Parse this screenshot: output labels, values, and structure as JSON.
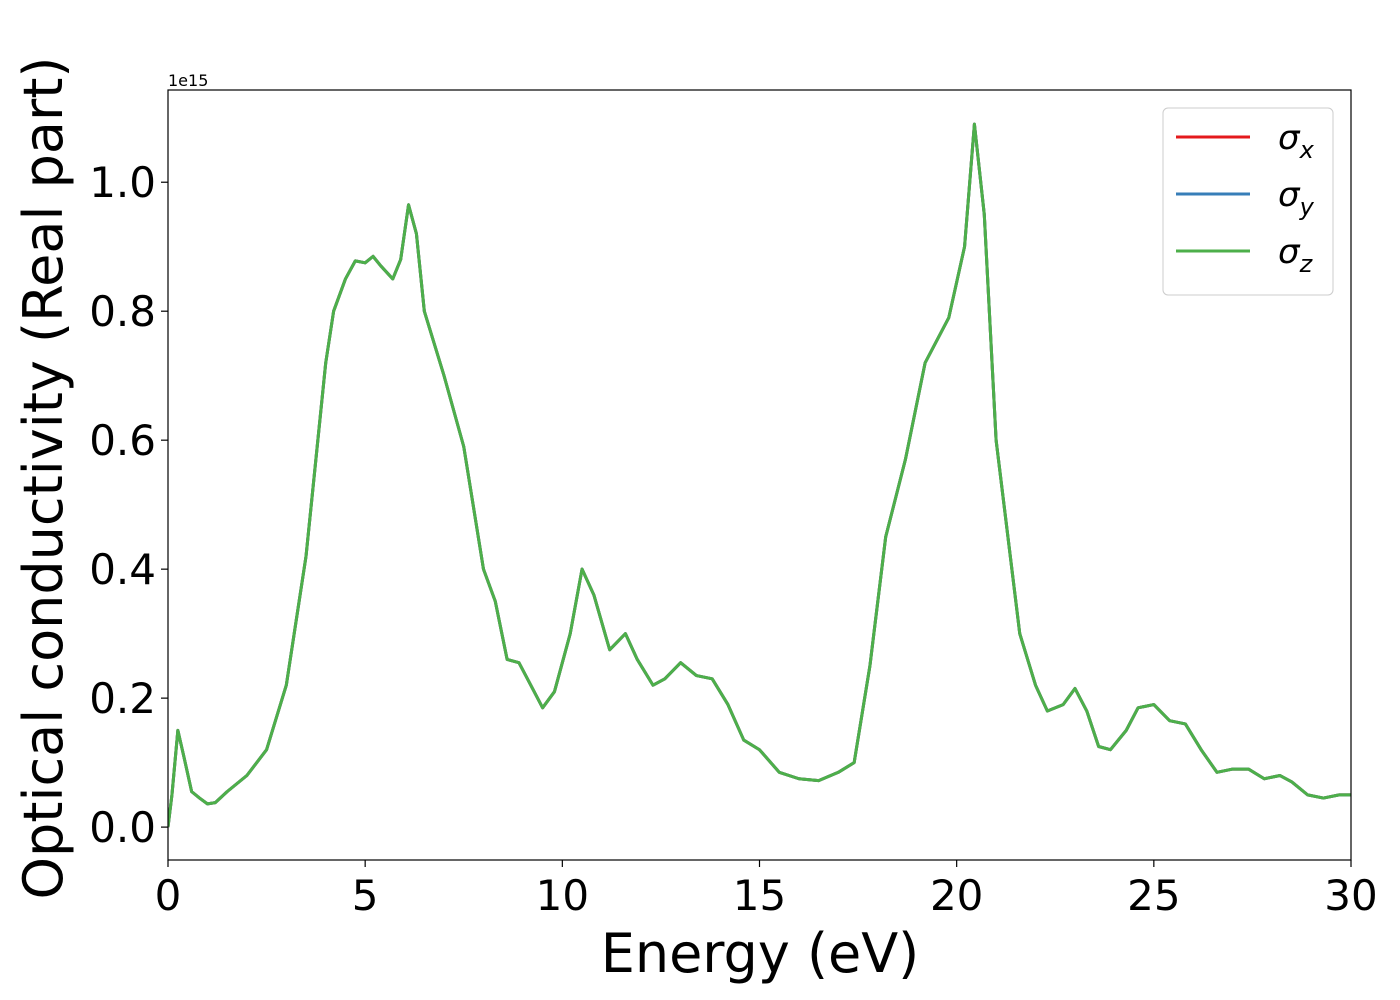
{
  "chart_data": {
    "type": "line",
    "xlabel": "Energy (eV)",
    "ylabel": "Optical conductivity (Real part)",
    "y_offset_label": "1e15",
    "x": [
      0,
      0.1,
      0.25,
      0.4,
      0.6,
      0.8,
      1.0,
      1.2,
      1.5,
      2.0,
      2.5,
      3.0,
      3.5,
      4.0,
      4.2,
      4.5,
      4.75,
      5.0,
      5.2,
      5.4,
      5.7,
      5.9,
      6.1,
      6.3,
      6.5,
      7.0,
      7.5,
      8.0,
      8.3,
      8.6,
      8.9,
      9.2,
      9.5,
      9.8,
      10.2,
      10.5,
      10.8,
      11.2,
      11.6,
      11.9,
      12.3,
      12.6,
      13.0,
      13.4,
      13.8,
      14.2,
      14.6,
      15.0,
      15.5,
      16.0,
      16.5,
      17.0,
      17.4,
      17.8,
      18.2,
      18.7,
      19.2,
      19.8,
      20.2,
      20.45,
      20.7,
      21.0,
      21.3,
      21.6,
      22.0,
      22.3,
      22.7,
      23.0,
      23.3,
      23.6,
      23.9,
      24.3,
      24.6,
      25.0,
      25.4,
      25.8,
      26.2,
      26.6,
      27.0,
      27.4,
      27.8,
      28.2,
      28.5,
      28.9,
      29.3,
      29.7,
      30.0
    ],
    "series": [
      {
        "name": "σx",
        "color": "#e41a1c",
        "values": [
          0,
          0.05,
          0.15,
          0.11,
          0.055,
          0.045,
          0.036,
          0.038,
          0.055,
          0.08,
          0.12,
          0.22,
          0.42,
          0.72,
          0.8,
          0.85,
          0.878,
          0.875,
          0.885,
          0.87,
          0.85,
          0.88,
          0.965,
          0.92,
          0.8,
          0.7,
          0.59,
          0.4,
          0.35,
          0.26,
          0.255,
          0.22,
          0.185,
          0.21,
          0.3,
          0.4,
          0.36,
          0.275,
          0.3,
          0.26,
          0.22,
          0.23,
          0.255,
          0.235,
          0.23,
          0.19,
          0.135,
          0.12,
          0.085,
          0.075,
          0.072,
          0.085,
          0.1,
          0.25,
          0.45,
          0.57,
          0.72,
          0.79,
          0.9,
          1.09,
          0.95,
          0.6,
          0.45,
          0.3,
          0.22,
          0.18,
          0.19,
          0.215,
          0.18,
          0.125,
          0.12,
          0.15,
          0.185,
          0.19,
          0.165,
          0.16,
          0.12,
          0.085,
          0.09,
          0.09,
          0.075,
          0.08,
          0.07,
          0.05,
          0.045,
          0.05,
          0.05
        ]
      },
      {
        "name": "σy",
        "color": "#377eb8",
        "values": [
          0,
          0.05,
          0.15,
          0.11,
          0.055,
          0.045,
          0.036,
          0.038,
          0.055,
          0.08,
          0.12,
          0.22,
          0.42,
          0.72,
          0.8,
          0.85,
          0.878,
          0.875,
          0.885,
          0.87,
          0.85,
          0.88,
          0.965,
          0.92,
          0.8,
          0.7,
          0.59,
          0.4,
          0.35,
          0.26,
          0.255,
          0.22,
          0.185,
          0.21,
          0.3,
          0.4,
          0.36,
          0.275,
          0.3,
          0.26,
          0.22,
          0.23,
          0.255,
          0.235,
          0.23,
          0.19,
          0.135,
          0.12,
          0.085,
          0.075,
          0.072,
          0.085,
          0.1,
          0.25,
          0.45,
          0.57,
          0.72,
          0.79,
          0.9,
          1.09,
          0.95,
          0.6,
          0.45,
          0.3,
          0.22,
          0.18,
          0.19,
          0.215,
          0.18,
          0.125,
          0.12,
          0.15,
          0.185,
          0.19,
          0.165,
          0.16,
          0.12,
          0.085,
          0.09,
          0.09,
          0.075,
          0.08,
          0.07,
          0.05,
          0.045,
          0.05,
          0.05
        ]
      },
      {
        "name": "σz",
        "color": "#4daf4a",
        "values": [
          0,
          0.05,
          0.15,
          0.11,
          0.055,
          0.045,
          0.036,
          0.038,
          0.055,
          0.08,
          0.12,
          0.22,
          0.42,
          0.72,
          0.8,
          0.85,
          0.878,
          0.875,
          0.885,
          0.87,
          0.85,
          0.88,
          0.965,
          0.92,
          0.8,
          0.7,
          0.59,
          0.4,
          0.35,
          0.26,
          0.255,
          0.22,
          0.185,
          0.21,
          0.3,
          0.4,
          0.36,
          0.275,
          0.3,
          0.26,
          0.22,
          0.23,
          0.255,
          0.235,
          0.23,
          0.19,
          0.135,
          0.12,
          0.085,
          0.075,
          0.072,
          0.085,
          0.1,
          0.25,
          0.45,
          0.57,
          0.72,
          0.79,
          0.9,
          1.09,
          0.95,
          0.6,
          0.45,
          0.3,
          0.22,
          0.18,
          0.19,
          0.215,
          0.18,
          0.125,
          0.12,
          0.15,
          0.185,
          0.19,
          0.165,
          0.16,
          0.12,
          0.085,
          0.09,
          0.09,
          0.075,
          0.08,
          0.07,
          0.05,
          0.045,
          0.05,
          0.05
        ]
      }
    ],
    "xlim": [
      0,
      30
    ],
    "xticks": [
      0,
      5,
      10,
      15,
      20,
      25,
      30
    ],
    "ylim": [
      -0.051,
      1.143
    ],
    "yticks": [
      {
        "value": 0,
        "label": "0.0"
      },
      0.2,
      0.4,
      0.6,
      0.8,
      {
        "value": 1,
        "label": "1.0"
      }
    ],
    "grid": false,
    "legend": "upper right"
  }
}
